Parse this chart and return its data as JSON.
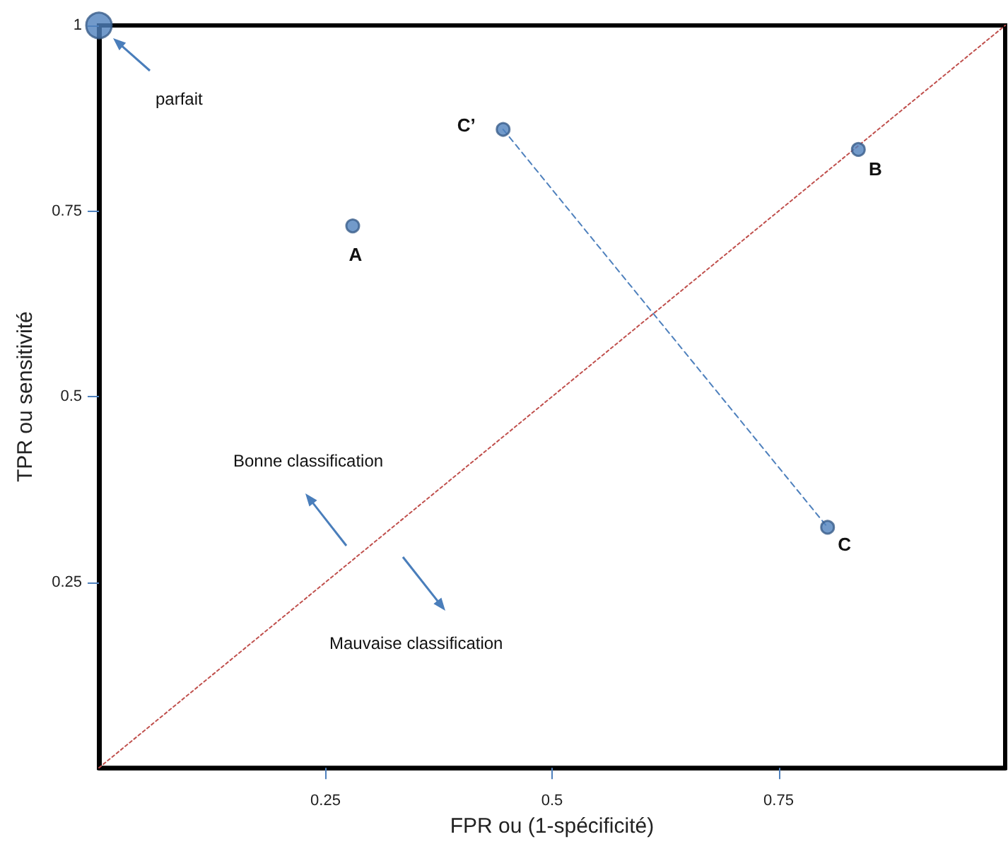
{
  "chart_data": {
    "type": "scatter",
    "xlabel": "FPR ou (1-spécificité)",
    "ylabel": "TPR ou sensitivité",
    "xlim": [
      0,
      1
    ],
    "ylim": [
      0,
      1
    ],
    "xticks": [
      0.25,
      0.5,
      0.75
    ],
    "yticks": [
      0.25,
      0.5,
      0.75,
      1
    ],
    "grid": false,
    "marker": "circle",
    "series": [
      {
        "color": "#4f81bd",
        "x": [
          0
        ],
        "values": [
          1
        ]
      },
      {
        "color": "#4f81bd",
        "x": [
          0.28,
          0.446,
          0.838,
          0.804
        ],
        "values": [
          0.73,
          0.86,
          0.833,
          0.324
        ]
      },
      {
        "type": "line",
        "color": "#4f81bd",
        "line_style": "dashed",
        "marker": "none",
        "x": [
          0.446,
          0.804
        ],
        "values": [
          0.86,
          0.324
        ]
      },
      {
        "type": "line",
        "color": "#c0504d",
        "line_style": "dotted",
        "marker": "none",
        "x": [
          0,
          1
        ],
        "values": [
          0,
          1
        ]
      }
    ],
    "annotations": [
      "parfait",
      {
        "text": "A",
        "x": 0.28,
        "y": 0.73
      },
      {
        "text": "C’",
        "x": 0.446,
        "y": 0.86
      },
      {
        "text": "B",
        "x": 0.838,
        "y": 0.833
      },
      {
        "text": "C",
        "x": 0.804,
        "y": 0.324
      },
      "Bonne classification",
      "Mauvaise classification"
    ]
  }
}
